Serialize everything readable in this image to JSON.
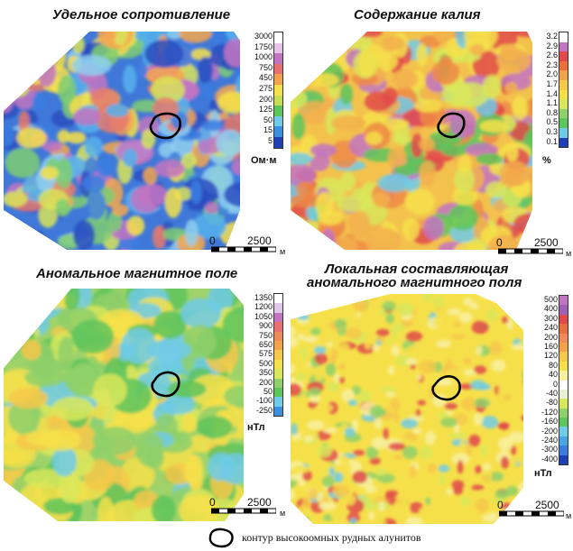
{
  "panels": [
    {
      "title": "Удельное сопротивление",
      "unit": "Ом·м",
      "legend_values": [
        "3000",
        "1750",
        "1000",
        "750",
        "450",
        "275",
        "200",
        "125",
        "50",
        "15",
        "5"
      ],
      "legend_colors": [
        "#ffffff",
        "#e8c3e8",
        "#c274c2",
        "#e87070",
        "#f3a24c",
        "#f6e04a",
        "#c8de52",
        "#5ec45c",
        "#6fcbe8",
        "#3b8fe0",
        "#1f3fb5"
      ],
      "palette": [
        "#2a4fc0",
        "#3b7ee0",
        "#55b0ec",
        "#8fd0f0",
        "#7fce72",
        "#d8e45a",
        "#f6e04a",
        "#f4a750",
        "#e77a6c",
        "#c274c2"
      ]
    },
    {
      "title": "Содержание калия",
      "unit": "%",
      "legend_values": [
        "3.2",
        "2.9",
        "2.6",
        "2.3",
        "2.0",
        "1.7",
        "1.4",
        "1.1",
        "0.8",
        "0.5",
        "0.3",
        "0.1"
      ],
      "legend_colors": [
        "#ffffff",
        "#c274c2",
        "#e24a4a",
        "#e8703a",
        "#f3a24c",
        "#f6c84a",
        "#f6e04a",
        "#d9e75a",
        "#8fd06a",
        "#5ec45c",
        "#6fcbe8",
        "#1f3fb5"
      ],
      "palette": [
        "#f6e04a",
        "#f3b04c",
        "#ef8a45",
        "#e24a4a",
        "#f6e04a",
        "#f3b04c",
        "#c274c2",
        "#d9e75a",
        "#5ec45c",
        "#6fcbe8"
      ]
    },
    {
      "title": "Аномальное магнитное поле",
      "unit": "нТл",
      "legend_values": [
        "1350",
        "1200",
        "1050",
        "900",
        "750",
        "650",
        "575",
        "500",
        "350",
        "200",
        "50",
        "-100",
        "-250"
      ],
      "legend_colors": [
        "#ffffff",
        "#e0c8e8",
        "#c274c2",
        "#e87070",
        "#f08a5a",
        "#f3a24c",
        "#f6c84a",
        "#f6e04a",
        "#d9e75a",
        "#8fd06a",
        "#5ec45c",
        "#6fcbe8",
        "#3b8fe0"
      ],
      "palette": [
        "#5ec45c",
        "#8fd06a",
        "#d9e75a",
        "#f6e04a",
        "#f6c84a",
        "#6fcbe8",
        "#8fd06a",
        "#f6e04a",
        "#d9e75a",
        "#5ec45c"
      ]
    },
    {
      "title_line1": "Локальная составляющая",
      "title_line2": "аномального магнитного поля",
      "unit": "нТл",
      "legend_values": [
        "500",
        "400",
        "300",
        "240",
        "200",
        "160",
        "120",
        "80",
        "40",
        "0",
        "-40",
        "-80",
        "-120",
        "-160",
        "-200",
        "-240",
        "-300",
        "-400"
      ],
      "legend_colors": [
        "#c274c2",
        "#a060b8",
        "#e24a4a",
        "#e8703a",
        "#f08a5a",
        "#f3a24c",
        "#f6c84a",
        "#f6e04a",
        "#f8f0a0",
        "#ffffff",
        "#e8f2d0",
        "#d9e75a",
        "#8fd06a",
        "#5ec45c",
        "#6fcbe8",
        "#4aa6e0",
        "#3b7ee0",
        "#1f3fb5"
      ],
      "palette": [
        "#f6e04a",
        "#f8f0a0",
        "#d9e75a",
        "#f6e04a",
        "#f6c84a",
        "#8fd06a",
        "#f6e04a",
        "#e24a4a",
        "#6fcbe8",
        "#f8f0a0"
      ]
    }
  ],
  "scale": {
    "zero": "0",
    "distance": "2500",
    "unit": "м"
  },
  "caption": "контур высокоомных рудных алунитов"
}
